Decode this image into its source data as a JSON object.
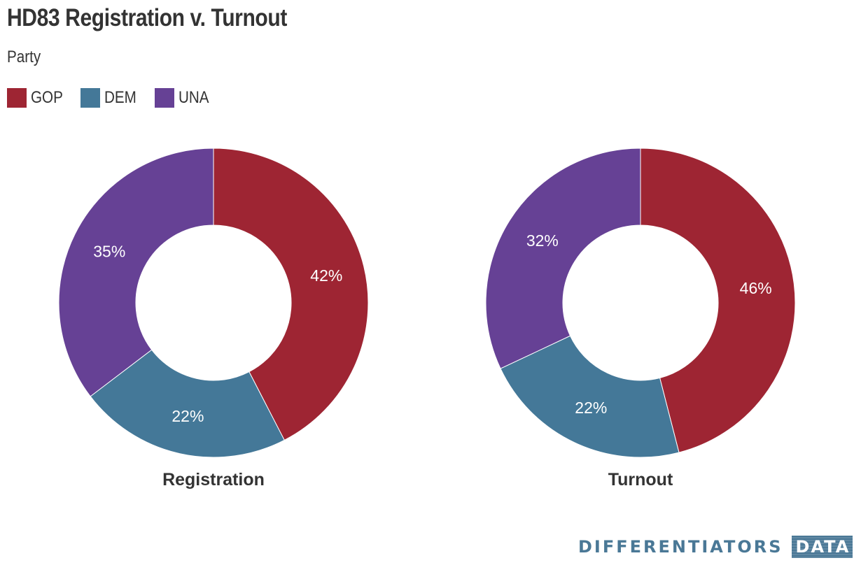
{
  "header": {
    "title": "HD83 Registration v. Turnout",
    "subtitle": "Party"
  },
  "legend": [
    {
      "label": "GOP",
      "color": "#9e2533"
    },
    {
      "label": "DEM",
      "color": "#447898"
    },
    {
      "label": "UNA",
      "color": "#664195"
    }
  ],
  "chart_data": [
    {
      "type": "pie",
      "donut": true,
      "label": "Registration",
      "slices": [
        {
          "name": "GOP",
          "value": 42,
          "label": "42%",
          "color": "#9e2533"
        },
        {
          "name": "DEM",
          "value": 22,
          "label": "22%",
          "color": "#447898"
        },
        {
          "name": "UNA",
          "value": 35,
          "label": "35%",
          "color": "#664195"
        }
      ]
    },
    {
      "type": "pie",
      "donut": true,
      "label": "Turnout",
      "slices": [
        {
          "name": "GOP",
          "value": 46,
          "label": "46%",
          "color": "#9e2533"
        },
        {
          "name": "DEM",
          "value": 22,
          "label": "22%",
          "color": "#447898"
        },
        {
          "name": "UNA",
          "value": 32,
          "label": "32%",
          "color": "#664195"
        }
      ]
    }
  ],
  "branding": {
    "main": "DIFFERENTIATORS",
    "box": "DATA"
  }
}
